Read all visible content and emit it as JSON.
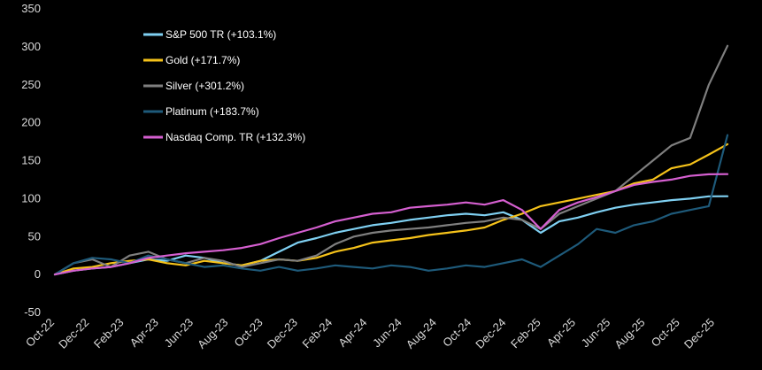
{
  "chart_data": {
    "type": "line",
    "title": "",
    "xlabel": "",
    "ylabel": "",
    "ylim": [
      -50,
      350
    ],
    "y_ticks": [
      "350",
      "300",
      "250",
      "200",
      "150",
      "100",
      "50",
      "0",
      "-50"
    ],
    "x_ticks": [
      "Oct-22",
      "Dec-22",
      "Feb-23",
      "Apr-23",
      "Jun-23",
      "Aug-23",
      "Oct-23",
      "Dec-23",
      "Feb-24",
      "Apr-24",
      "Jun-24",
      "Aug-24",
      "Oct-24",
      "Dec-24",
      "Feb-25",
      "Apr-25",
      "Jun-25",
      "Aug-25",
      "Oct-25",
      "Dec-25"
    ],
    "grid": false,
    "legend_position": "top-left",
    "background": "#000000",
    "series": [
      {
        "name": "S&P 500 TR (+103.1%)",
        "color": "#7fd0f2",
        "points": [
          [
            0,
            0
          ],
          [
            1,
            5
          ],
          [
            2,
            8
          ],
          [
            3,
            10
          ],
          [
            4,
            15
          ],
          [
            5,
            20
          ],
          [
            6,
            18
          ],
          [
            7,
            25
          ],
          [
            8,
            22
          ],
          [
            9,
            15
          ],
          [
            10,
            12
          ],
          [
            11,
            18
          ],
          [
            12,
            30
          ],
          [
            13,
            42
          ],
          [
            14,
            48
          ],
          [
            15,
            55
          ],
          [
            16,
            60
          ],
          [
            17,
            65
          ],
          [
            18,
            68
          ],
          [
            19,
            72
          ],
          [
            20,
            75
          ],
          [
            21,
            78
          ],
          [
            22,
            80
          ],
          [
            23,
            78
          ],
          [
            24,
            82
          ],
          [
            25,
            72
          ],
          [
            26,
            55
          ],
          [
            27,
            70
          ],
          [
            28,
            75
          ],
          [
            29,
            82
          ],
          [
            30,
            88
          ],
          [
            31,
            92
          ],
          [
            32,
            95
          ],
          [
            33,
            98
          ],
          [
            34,
            100
          ],
          [
            35,
            103
          ],
          [
            36,
            103.1
          ]
        ]
      },
      {
        "name": "Gold (+171.7%)",
        "color": "#f5c21a",
        "points": [
          [
            0,
            0
          ],
          [
            1,
            8
          ],
          [
            2,
            10
          ],
          [
            3,
            15
          ],
          [
            4,
            18
          ],
          [
            5,
            20
          ],
          [
            6,
            15
          ],
          [
            7,
            12
          ],
          [
            8,
            18
          ],
          [
            9,
            15
          ],
          [
            10,
            12
          ],
          [
            11,
            18
          ],
          [
            12,
            20
          ],
          [
            13,
            18
          ],
          [
            14,
            22
          ],
          [
            15,
            30
          ],
          [
            16,
            35
          ],
          [
            17,
            42
          ],
          [
            18,
            45
          ],
          [
            19,
            48
          ],
          [
            20,
            52
          ],
          [
            21,
            55
          ],
          [
            22,
            58
          ],
          [
            23,
            62
          ],
          [
            24,
            72
          ],
          [
            25,
            80
          ],
          [
            26,
            90
          ],
          [
            27,
            95
          ],
          [
            28,
            100
          ],
          [
            29,
            105
          ],
          [
            30,
            110
          ],
          [
            31,
            120
          ],
          [
            32,
            125
          ],
          [
            33,
            140
          ],
          [
            34,
            145
          ],
          [
            35,
            158
          ],
          [
            36,
            171.7
          ]
        ]
      },
      {
        "name": "Silver (+301.2%)",
        "color": "#7f7f7f",
        "points": [
          [
            0,
            0
          ],
          [
            1,
            15
          ],
          [
            2,
            20
          ],
          [
            3,
            10
          ],
          [
            4,
            25
          ],
          [
            5,
            30
          ],
          [
            6,
            20
          ],
          [
            7,
            15
          ],
          [
            8,
            22
          ],
          [
            9,
            18
          ],
          [
            10,
            10
          ],
          [
            11,
            15
          ],
          [
            12,
            20
          ],
          [
            13,
            18
          ],
          [
            14,
            25
          ],
          [
            15,
            40
          ],
          [
            16,
            50
          ],
          [
            17,
            55
          ],
          [
            18,
            58
          ],
          [
            19,
            60
          ],
          [
            20,
            62
          ],
          [
            21,
            65
          ],
          [
            22,
            68
          ],
          [
            23,
            70
          ],
          [
            24,
            75
          ],
          [
            25,
            72
          ],
          [
            26,
            60
          ],
          [
            27,
            80
          ],
          [
            28,
            90
          ],
          [
            29,
            100
          ],
          [
            30,
            110
          ],
          [
            31,
            130
          ],
          [
            32,
            150
          ],
          [
            33,
            170
          ],
          [
            34,
            180
          ],
          [
            35,
            250
          ],
          [
            36,
            301.2
          ]
        ]
      },
      {
        "name": "Platinum (+183.7%)",
        "color": "#1e5a7a",
        "points": [
          [
            0,
            0
          ],
          [
            1,
            15
          ],
          [
            2,
            22
          ],
          [
            3,
            20
          ],
          [
            4,
            15
          ],
          [
            5,
            25
          ],
          [
            6,
            20
          ],
          [
            7,
            15
          ],
          [
            8,
            10
          ],
          [
            9,
            12
          ],
          [
            10,
            8
          ],
          [
            11,
            5
          ],
          [
            12,
            10
          ],
          [
            13,
            5
          ],
          [
            14,
            8
          ],
          [
            15,
            12
          ],
          [
            16,
            10
          ],
          [
            17,
            8
          ],
          [
            18,
            12
          ],
          [
            19,
            10
          ],
          [
            20,
            5
          ],
          [
            21,
            8
          ],
          [
            22,
            12
          ],
          [
            23,
            10
          ],
          [
            24,
            15
          ],
          [
            25,
            20
          ],
          [
            26,
            10
          ],
          [
            27,
            25
          ],
          [
            28,
            40
          ],
          [
            29,
            60
          ],
          [
            30,
            55
          ],
          [
            31,
            65
          ],
          [
            32,
            70
          ],
          [
            33,
            80
          ],
          [
            34,
            85
          ],
          [
            35,
            90
          ],
          [
            36,
            183.7
          ]
        ]
      },
      {
        "name": "Nasdaq Comp. TR (+132.3%)",
        "color": "#d55fd0",
        "points": [
          [
            0,
            0
          ],
          [
            1,
            5
          ],
          [
            2,
            8
          ],
          [
            3,
            10
          ],
          [
            4,
            15
          ],
          [
            5,
            22
          ],
          [
            6,
            25
          ],
          [
            7,
            28
          ],
          [
            8,
            30
          ],
          [
            9,
            32
          ],
          [
            10,
            35
          ],
          [
            11,
            40
          ],
          [
            12,
            48
          ],
          [
            13,
            55
          ],
          [
            14,
            62
          ],
          [
            15,
            70
          ],
          [
            16,
            75
          ],
          [
            17,
            80
          ],
          [
            18,
            82
          ],
          [
            19,
            88
          ],
          [
            20,
            90
          ],
          [
            21,
            92
          ],
          [
            22,
            95
          ],
          [
            23,
            92
          ],
          [
            24,
            98
          ],
          [
            25,
            85
          ],
          [
            26,
            60
          ],
          [
            27,
            85
          ],
          [
            28,
            95
          ],
          [
            29,
            102
          ],
          [
            30,
            110
          ],
          [
            31,
            118
          ],
          [
            32,
            122
          ],
          [
            33,
            125
          ],
          [
            34,
            130
          ],
          [
            35,
            132
          ],
          [
            36,
            132.3
          ]
        ]
      }
    ]
  }
}
